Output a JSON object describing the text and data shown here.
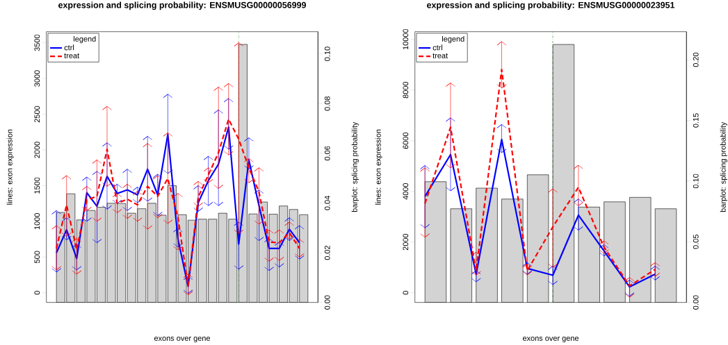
{
  "chart_data": [
    {
      "type": "bar",
      "ylabel": "barplot: splicing probability",
      "categories": [
        null,
        null,
        null,
        null,
        null,
        null,
        null,
        null,
        null,
        null,
        null,
        null,
        null,
        null,
        null,
        null,
        null,
        null,
        null,
        null,
        null,
        null,
        null,
        null,
        null
      ],
      "series": [
        {
          "color": "#d3d3d3",
          "values": [
            0.0362,
            0.0437,
            0.0332,
            0.037,
            0.0383,
            0.0399,
            0.0398,
            0.0359,
            0.0377,
            0.0399,
            0.0351,
            0.047,
            0.0353,
            0.0331,
            0.0335,
            0.0335,
            0.0359,
            0.0335,
            0.1038,
            0.0356,
            0.0404,
            0.0355,
            0.0388,
            0.0374,
            0.0353
          ]
        }
      ],
      "ylim": [
        0,
        0.1089
      ],
      "yticks": [
        {
          "value": 0,
          "label": "0.00"
        },
        {
          "value": 0.02,
          "label": "0.02"
        },
        {
          "value": 0.04,
          "label": "0.04"
        },
        {
          "value": 0.06,
          "label": "0.06"
        },
        {
          "value": 0.08,
          "label": "0.08"
        },
        {
          "value": 0.1,
          "label": "0.10"
        }
      ]
    },
    {
      "type": "line",
      "title": "expression and splicing probability: ENSMUSG00000056999",
      "xlabel": "exons over gene",
      "ylabel": "lines: exon expression",
      "legend_title": "legend",
      "legend": "top left",
      "categories": [
        null,
        null,
        null,
        null,
        null,
        null,
        null,
        null,
        null,
        null,
        null,
        null,
        null,
        null,
        null,
        null,
        null,
        null,
        null,
        null,
        null,
        null,
        null,
        null,
        null
      ],
      "series": [
        {
          "name": "ctrl",
          "color": "#0000ff",
          "line_style": "solid",
          "values": [
            560,
            880,
            480,
            1400,
            1210,
            1630,
            1390,
            1440,
            1370,
            1730,
            1370,
            2220,
            750,
            90,
            1260,
            1570,
            1800,
            2320,
            680,
            1860,
            1220,
            620,
            620,
            890,
            700
          ],
          "errors": [
            [
              290,
              1150
            ],
            [
              740,
              1050
            ],
            [
              320,
              680
            ],
            [
              1000,
              1620
            ],
            [
              700,
              1700
            ],
            [
              1170,
              2100
            ],
            [
              1250,
              1520
            ],
            [
              1150,
              1730
            ],
            [
              1260,
              1480
            ],
            [
              1280,
              2190
            ],
            [
              1080,
              1660
            ],
            [
              1670,
              2780
            ],
            [
              640,
              900
            ],
            [
              -10,
              230
            ],
            [
              1140,
              1500
            ],
            [
              1220,
              1910
            ],
            [
              1220,
              2560
            ],
            [
              2010,
              2720
            ],
            [
              330,
              990
            ],
            [
              1730,
              2170
            ],
            [
              730,
              1440
            ],
            [
              310,
              760
            ],
            [
              360,
              710
            ],
            [
              730,
              1050
            ],
            [
              470,
              940
            ]
          ]
        },
        {
          "name": "treat",
          "color": "#ff0000",
          "line_style": "dashed",
          "values": [
            620,
            1230,
            600,
            1300,
            1350,
            2010,
            1250,
            1310,
            1230,
            1490,
            1350,
            1600,
            1050,
            100,
            1340,
            1650,
            1960,
            2430,
            2150,
            1750,
            1410,
            710,
            700,
            840,
            620
          ],
          "errors": [
            [
              320,
              940
            ],
            [
              790,
              1640
            ],
            [
              260,
              760
            ],
            [
              1150,
              1490
            ],
            [
              1000,
              1860
            ],
            [
              1490,
              2610
            ],
            [
              1120,
              1390
            ],
            [
              1040,
              1520
            ],
            [
              1000,
              1420
            ],
            [
              890,
              2090
            ],
            [
              1050,
              1640
            ],
            [
              970,
              2240
            ],
            [
              600,
              1390
            ],
            [
              -30,
              260
            ],
            [
              1210,
              1560
            ],
            [
              1540,
              1750
            ],
            [
              1460,
              2880
            ],
            [
              1930,
              2930
            ],
            [
              830,
              3500
            ],
            [
              1540,
              1880
            ],
            [
              960,
              1750
            ],
            [
              440,
              880
            ],
            [
              450,
              880
            ],
            [
              750,
              990
            ],
            [
              500,
              750
            ]
          ]
        }
      ],
      "ylim": [
        -136,
        3655
      ],
      "yticks": [
        0,
        500,
        1000,
        1500,
        2000,
        2500,
        3000,
        3500
      ]
    },
    {
      "type": "bar",
      "ylabel": "barplot: splicing probability",
      "categories": [
        null,
        null,
        null,
        null,
        null,
        null,
        null,
        null,
        null,
        null
      ],
      "series": [
        {
          "color": "#d3d3d3",
          "values": [
            0.0995,
            0.0772,
            0.0942,
            0.0852,
            0.1052,
            0.2126,
            0.0786,
            0.0829,
            0.0866,
            0.0772
          ]
        }
      ],
      "ylim": [
        0,
        0.2231
      ],
      "yticks": [
        {
          "value": 0,
          "label": "0.00"
        },
        {
          "value": 0.05,
          "label": "0.05"
        },
        {
          "value": 0.1,
          "label": "0.10"
        },
        {
          "value": 0.15,
          "label": "0.15"
        },
        {
          "value": 0.2,
          "label": "0.20"
        }
      ]
    },
    {
      "type": "line",
      "title": "expression and splicing probability: ENSMUSG00000023951",
      "xlabel": "exons over gene",
      "ylabel": "lines: exon expression",
      "legend_title": "legend",
      "legend": "top left",
      "categories": [
        null,
        null,
        null,
        null,
        null,
        null,
        null,
        null,
        null,
        null
      ],
      "series": [
        {
          "name": "ctrl",
          "color": "#0000ff",
          "line_style": "solid",
          "values": [
            3800,
            5450,
            730,
            6050,
            960,
            690,
            3060,
            1650,
            230,
            730
          ],
          "errors": [
            [
              2560,
              5020
            ],
            [
              4020,
              6900
            ],
            [
              430,
              870
            ],
            [
              5530,
              6640
            ],
            [
              730,
              1190
            ],
            [
              320,
              1050
            ],
            [
              2470,
              3700
            ],
            [
              1450,
              1900
            ],
            [
              -140,
              500
            ],
            [
              500,
              1050
            ]
          ]
        },
        {
          "name": "treat",
          "color": "#ff0000",
          "line_style": "dashed",
          "values": [
            3520,
            6530,
            850,
            8810,
            870,
            2600,
            4160,
            1800,
            270,
            920
          ],
          "errors": [
            [
              2190,
              4930
            ],
            [
              4930,
              8280
            ],
            [
              700,
              1600
            ],
            [
              8080,
              9910
            ],
            [
              700,
              1140
            ],
            [
              1000,
              4100
            ],
            [
              3430,
              5030
            ],
            [
              1550,
              2050
            ],
            [
              -180,
              600
            ],
            [
              640,
              1190
            ]
          ]
        }
      ],
      "ylim": [
        -384,
        10301
      ],
      "yticks": [
        0,
        2000,
        4000,
        6000,
        8000,
        10000
      ]
    }
  ]
}
